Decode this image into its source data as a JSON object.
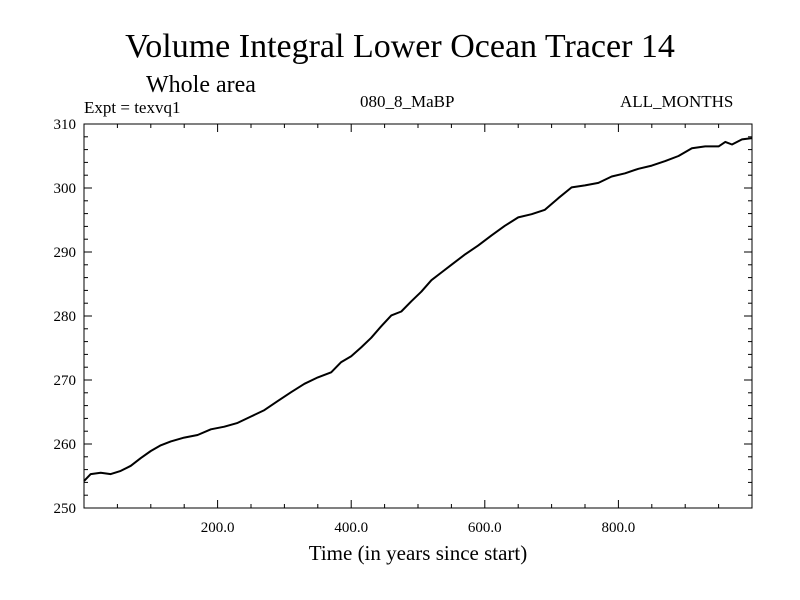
{
  "header": {
    "title": "Volume Integral Lower Ocean Tracer 14",
    "subtitle": "Whole area",
    "experiment": "Expt = texvq1",
    "run_name": "080_8_MaBP",
    "months": "ALL_MONTHS"
  },
  "chart_data": {
    "type": "line",
    "title": "Volume Integral Lower Ocean Tracer 14",
    "xlabel": "Time (in years since start)",
    "ylabel": "",
    "xlim": [
      0,
      1000
    ],
    "ylim": [
      250,
      310
    ],
    "xticks": [
      200,
      400,
      600,
      800
    ],
    "xtick_labels": [
      "200.0",
      "400.0",
      "600.0",
      "800.0"
    ],
    "yticks": [
      250,
      260,
      270,
      280,
      290,
      300,
      310
    ],
    "ytick_labels": [
      "250",
      "260",
      "270",
      "280",
      "290",
      "300",
      "310"
    ],
    "series": [
      {
        "name": "texvq1",
        "x": [
          0,
          10,
          25,
          40,
          55,
          70,
          85,
          100,
          115,
          130,
          150,
          170,
          190,
          210,
          230,
          250,
          270,
          290,
          310,
          330,
          350,
          370,
          385,
          400,
          415,
          430,
          445,
          460,
          475,
          490,
          505,
          520,
          535,
          550,
          570,
          590,
          610,
          630,
          650,
          670,
          690,
          710,
          730,
          750,
          770,
          790,
          810,
          830,
          850,
          870,
          890,
          910,
          930,
          950,
          960,
          970,
          985,
          1000
        ],
        "y": [
          254.2,
          255.3,
          255.5,
          255.3,
          255.8,
          256.6,
          257.8,
          258.9,
          259.8,
          260.4,
          261.0,
          261.4,
          262.3,
          262.7,
          263.3,
          264.3,
          265.3,
          266.7,
          268.1,
          269.4,
          270.4,
          271.2,
          272.8,
          273.7,
          275.1,
          276.6,
          278.4,
          280.1,
          280.7,
          282.3,
          283.8,
          285.6,
          286.8,
          288.0,
          289.6,
          291.0,
          292.6,
          294.1,
          295.4,
          295.9,
          296.6,
          298.4,
          300.1,
          300.4,
          300.8,
          301.8,
          302.3,
          303.0,
          303.5,
          304.2,
          305.0,
          306.2,
          306.5,
          306.5,
          307.2,
          306.8,
          307.6,
          307.8
        ]
      }
    ]
  }
}
